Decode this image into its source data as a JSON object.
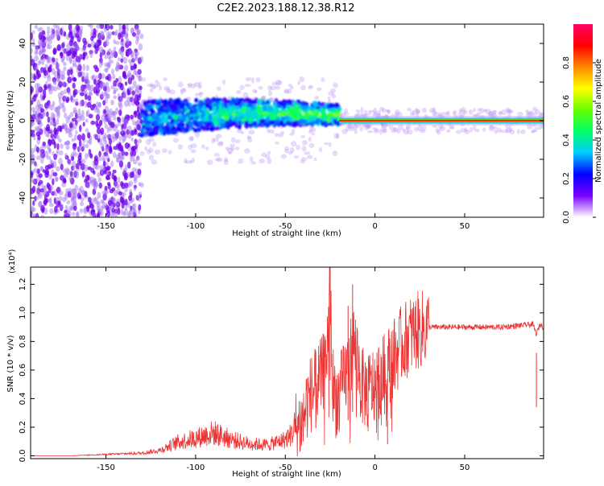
{
  "title": "C2E2.2023.188.12.38.R12",
  "chart_data": [
    {
      "type": "heatmap",
      "xlabel": "Height of straight line (km)",
      "ylabel": "Frequency (Hz)",
      "xlim": [
        -192,
        94
      ],
      "ylim": [
        -50,
        50
      ],
      "xticks": [
        -150,
        -100,
        -50,
        0,
        50
      ],
      "yticks": [
        -40,
        -20,
        0,
        20,
        40
      ],
      "colorbar": {
        "label": "Normalized spectral amplitude",
        "range": [
          0,
          1
        ],
        "ticks": [
          "0.0",
          "0.2",
          "0.4",
          "0.6",
          "0.8"
        ],
        "colors": [
          "#ffffff",
          "#7b00ff",
          "#0000ff",
          "#00ccff",
          "#00ff66",
          "#66ff00",
          "#ffff00",
          "#ff8800",
          "#ff0000",
          "#ff0066"
        ]
      },
      "features": [
        {
          "x": [
            -192,
            -130
          ],
          "freq": [
            -50,
            50
          ],
          "amplitude": 0.1
        },
        {
          "x": [
            -130,
            -20
          ],
          "freq": [
            -12,
            12
          ],
          "amplitude": 0.4
        },
        {
          "x": [
            -20,
            94
          ],
          "freq": [
            -2,
            2
          ],
          "amplitude": 0.9
        }
      ]
    },
    {
      "type": "line",
      "xlabel": "Height of straight line (km)",
      "ylabel": "SNR (10 * v/v)",
      "y_multiplier": "(x10⁴)",
      "xlim": [
        -192,
        94
      ],
      "ylim": [
        -0.02,
        1.32
      ],
      "xticks": [
        -150,
        -100,
        -50,
        0,
        50
      ],
      "yticks": [
        "0.0",
        "0.2",
        "0.4",
        "0.6",
        "0.8",
        "1.0",
        "1.2"
      ],
      "color": "#ee3333",
      "x": [
        -192,
        -170,
        -150,
        -130,
        -120,
        -110,
        -100,
        -90,
        -80,
        -70,
        -60,
        -50,
        -45,
        -40,
        -38,
        -35,
        -32,
        -30,
        -28,
        -26,
        -25,
        -24,
        -22,
        -20,
        -18,
        -15,
        -12,
        -10,
        -8,
        -5,
        0,
        5,
        10,
        15,
        20,
        25,
        30,
        35,
        40,
        45,
        50,
        60,
        70,
        80,
        88,
        90,
        92,
        94
      ],
      "y": [
        0.0,
        0.0,
        0.01,
        0.02,
        0.04,
        0.1,
        0.13,
        0.17,
        0.12,
        0.09,
        0.08,
        0.12,
        0.18,
        0.25,
        0.38,
        0.45,
        0.5,
        0.55,
        0.62,
        0.85,
        1.32,
        0.55,
        0.4,
        0.42,
        0.5,
        0.62,
        0.8,
        0.72,
        0.5,
        0.45,
        0.5,
        0.58,
        0.68,
        0.78,
        0.85,
        0.88,
        0.9,
        0.9,
        0.9,
        0.9,
        0.9,
        0.9,
        0.9,
        0.91,
        0.92,
        0.85,
        0.92,
        0.9
      ]
    }
  ]
}
